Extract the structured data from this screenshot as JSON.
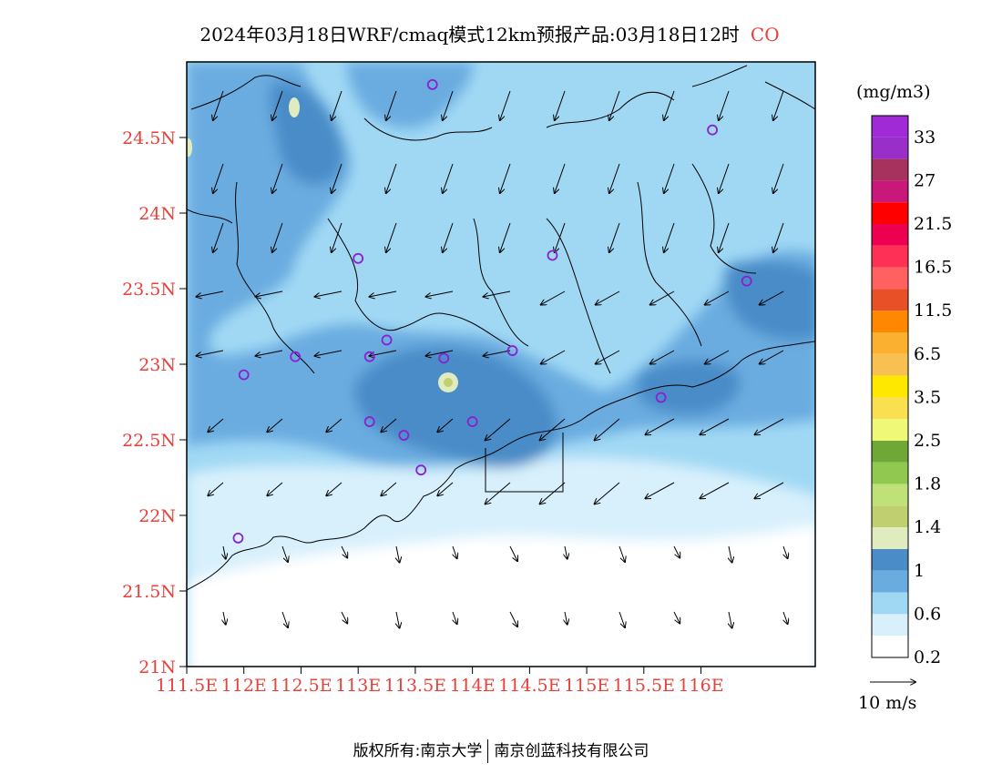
{
  "title": "2024年03月18日WRF/cmaq模式12km预报产品:03月18日12时",
  "species": "CO",
  "unit": "(mg/m3)",
  "wind_scale_label": "10 m/s",
  "footer": {
    "left": "版权所有:南京大学",
    "right": "南京创蓝科技有限公司"
  },
  "lat_ticks": [
    "24.5N",
    "24N",
    "23.5N",
    "23N",
    "22.5N",
    "22N",
    "21.5N",
    "21N"
  ],
  "lon_ticks": [
    "111.5E",
    "112E",
    "112.5E",
    "113E",
    "113.5E",
    "114E",
    "114.5E",
    "115E",
    "115.5E",
    "116E"
  ],
  "legend": {
    "labels": [
      "33",
      "27",
      "21.5",
      "16.5",
      "11.5",
      "6.5",
      "3.5",
      "2.5",
      "1.8",
      "1.4",
      "1",
      "0.6",
      "0.2"
    ],
    "colors": [
      "#a02ad6",
      "#9a2ec8",
      "#a8325e",
      "#c8197a",
      "#ff0000",
      "#ee0050",
      "#ff3055",
      "#ff6060",
      "#e85028",
      "#ff8800",
      "#fbb030",
      "#f8c050",
      "#fee800",
      "#f8e050",
      "#f0f878",
      "#70a838",
      "#90c850",
      "#c0e078",
      "#c0d070",
      "#e0ecc0",
      "#4a8cc8",
      "#6aace0",
      "#a0d8f4",
      "#d8f0fc",
      "#ffffff"
    ]
  },
  "colors": {
    "accent_label": "#e8403a",
    "station_marker": "#8a20d0"
  },
  "map": {
    "lon_range": [
      111.5,
      117.0
    ],
    "lat_range": [
      21.0,
      25.0
    ],
    "stations": [
      [
        113.65,
        24.85
      ],
      [
        116.1,
        24.55
      ],
      [
        113.0,
        23.7
      ],
      [
        114.7,
        23.72
      ],
      [
        116.4,
        23.55
      ],
      [
        112.0,
        22.93
      ],
      [
        112.45,
        23.05
      ],
      [
        113.1,
        23.05
      ],
      [
        113.25,
        23.16
      ],
      [
        113.75,
        23.04
      ],
      [
        114.35,
        23.09
      ],
      [
        113.1,
        22.62
      ],
      [
        113.4,
        22.53
      ],
      [
        114.0,
        22.62
      ],
      [
        113.55,
        22.3
      ],
      [
        111.95,
        21.85
      ],
      [
        115.65,
        22.78
      ]
    ]
  }
}
